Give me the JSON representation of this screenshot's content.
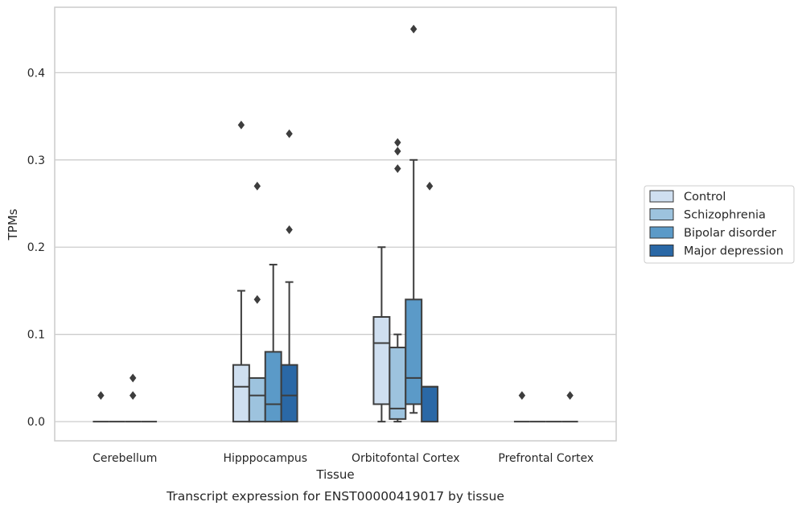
{
  "chart_data": {
    "type": "box",
    "xlabel": "Tissue",
    "ylabel": "TPMs",
    "caption": "Transcript expression for ENST00000419017 by tissue",
    "ylim": [
      -0.022,
      0.475
    ],
    "yticks": [
      "0.0",
      "0.1",
      "0.2",
      "0.3",
      "0.4"
    ],
    "ytick_values": [
      0.0,
      0.1,
      0.2,
      0.3,
      0.4
    ],
    "grid": "horizontal",
    "legend_position": "right",
    "categories": [
      "Cerebellum",
      "Hipppocampus",
      "Orbitofontal Cortex",
      "Prefrontal Cortex"
    ],
    "series": [
      {
        "name": "Control",
        "color": "#cfdff0",
        "boxes": [
          {
            "q1": 0.0,
            "median": 0.0,
            "q3": 0.0,
            "whisker_low": 0.0,
            "whisker_high": 0.0,
            "outliers": [
              0.03
            ]
          },
          {
            "q1": 0.0,
            "median": 0.04,
            "q3": 0.065,
            "whisker_low": 0.0,
            "whisker_high": 0.15,
            "outliers": [
              0.34
            ]
          },
          {
            "q1": 0.02,
            "median": 0.09,
            "q3": 0.12,
            "whisker_low": 0.0,
            "whisker_high": 0.2,
            "outliers": []
          },
          {
            "q1": 0.0,
            "median": 0.0,
            "q3": 0.0,
            "whisker_low": 0.0,
            "whisker_high": 0.0,
            "outliers": [
              0.03
            ]
          }
        ]
      },
      {
        "name": "Schizophrenia",
        "color": "#9dc3de",
        "boxes": [
          {
            "q1": 0.0,
            "median": 0.0,
            "q3": 0.0,
            "whisker_low": 0.0,
            "whisker_high": 0.0,
            "outliers": []
          },
          {
            "q1": 0.0,
            "median": 0.03,
            "q3": 0.05,
            "whisker_low": 0.0,
            "whisker_high": 0.05,
            "outliers": [
              0.14,
              0.27
            ]
          },
          {
            "q1": 0.003,
            "median": 0.015,
            "q3": 0.085,
            "whisker_low": 0.0,
            "whisker_high": 0.1,
            "outliers": [
              0.29,
              0.31,
              0.32
            ]
          },
          {
            "q1": 0.0,
            "median": 0.0,
            "q3": 0.0,
            "whisker_low": 0.0,
            "whisker_high": 0.0,
            "outliers": []
          }
        ]
      },
      {
        "name": "Bipolar disorder",
        "color": "#5b9ac8",
        "boxes": [
          {
            "q1": 0.0,
            "median": 0.0,
            "q3": 0.0,
            "whisker_low": 0.0,
            "whisker_high": 0.0,
            "outliers": [
              0.03,
              0.05
            ]
          },
          {
            "q1": 0.0,
            "median": 0.02,
            "q3": 0.08,
            "whisker_low": 0.0,
            "whisker_high": 0.18,
            "outliers": []
          },
          {
            "q1": 0.02,
            "median": 0.05,
            "q3": 0.14,
            "whisker_low": 0.01,
            "whisker_high": 0.3,
            "outliers": [
              0.45
            ]
          },
          {
            "q1": 0.0,
            "median": 0.0,
            "q3": 0.0,
            "whisker_low": 0.0,
            "whisker_high": 0.0,
            "outliers": []
          }
        ]
      },
      {
        "name": "Major depression",
        "color": "#2a68a6",
        "boxes": [
          {
            "q1": 0.0,
            "median": 0.0,
            "q3": 0.0,
            "whisker_low": 0.0,
            "whisker_high": 0.0,
            "outliers": []
          },
          {
            "q1": 0.0,
            "median": 0.03,
            "q3": 0.065,
            "whisker_low": 0.0,
            "whisker_high": 0.16,
            "outliers": [
              0.22,
              0.33
            ]
          },
          {
            "q1": 0.0,
            "median": 0.04,
            "q3": 0.04,
            "whisker_low": 0.0,
            "whisker_high": 0.04,
            "outliers": [
              0.27
            ]
          },
          {
            "q1": 0.0,
            "median": 0.0,
            "q3": 0.0,
            "whisker_low": 0.0,
            "whisker_high": 0.0,
            "outliers": [
              0.03
            ]
          }
        ]
      }
    ]
  }
}
